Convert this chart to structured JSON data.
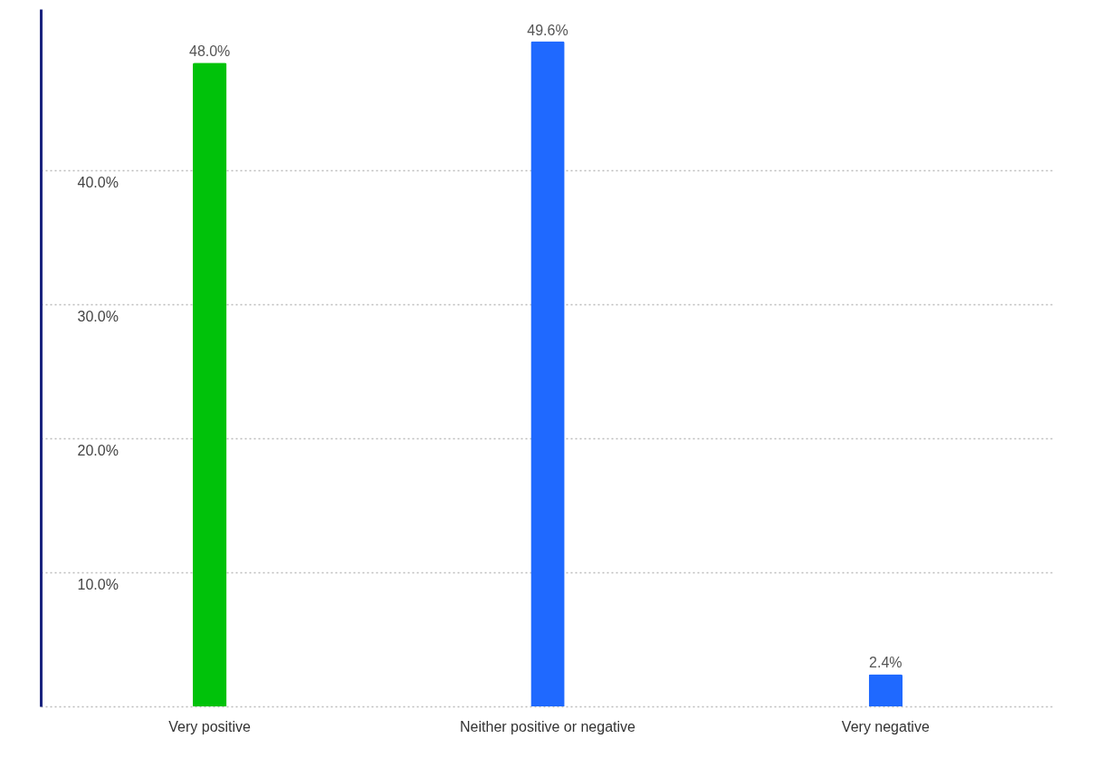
{
  "chart_data": {
    "type": "bar",
    "categories": [
      "Very positive",
      "Neither positive or negative",
      "Very negative"
    ],
    "values": [
      48.0,
      49.6,
      2.4
    ],
    "colors": [
      "#00c20a",
      "#1f69ff",
      "#1f69ff"
    ],
    "value_labels": [
      "48.0%",
      "49.6%",
      "2.4%"
    ],
    "ylim": [
      0,
      52
    ],
    "yticks": [
      {
        "value": 0,
        "label": null
      },
      {
        "value": 10,
        "label": "10.0%"
      },
      {
        "value": 20,
        "label": "20.0%"
      },
      {
        "value": 30,
        "label": "30.0%"
      },
      {
        "value": 40,
        "label": "40.0%"
      }
    ],
    "grid": "y"
  }
}
